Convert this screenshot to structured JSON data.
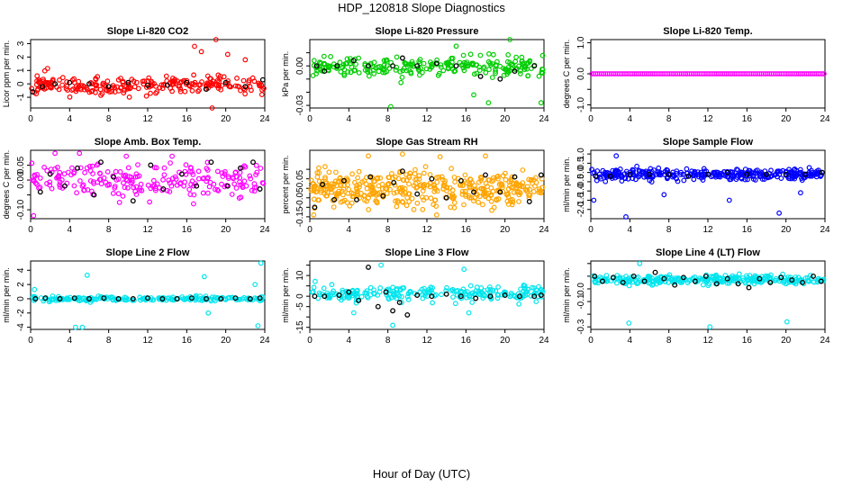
{
  "page": {
    "title": "HDP_120818  Slope Diagnostics",
    "xlabel": "Hour of Day (UTC)"
  },
  "chart_data": [
    {
      "type": "scatter",
      "title": "Slope Li-820 CO2",
      "ylabel": "Licor ppm per min.",
      "xlim": [
        0,
        24
      ],
      "ylim": [
        -1.8,
        3.3
      ],
      "xticks": [
        0,
        4,
        8,
        12,
        16,
        20,
        24
      ],
      "yticks": [
        -1,
        0,
        1,
        2,
        3
      ],
      "ytick_labels": [
        "-1",
        "0",
        "1",
        "2",
        "3"
      ],
      "color": "#ff0000",
      "center": -0.1,
      "spread": 0.7,
      "n": 240,
      "seed": 11,
      "outliers": [
        [
          16.8,
          2.8
        ],
        [
          19.0,
          3.3
        ],
        [
          17.5,
          2.4
        ],
        [
          18.6,
          -1.8
        ],
        [
          20.2,
          2.2
        ],
        [
          22.0,
          1.8
        ]
      ],
      "black": [
        [
          0.2,
          -0.6
        ],
        [
          1.2,
          -0.2
        ],
        [
          2.5,
          0.0
        ],
        [
          4.0,
          0.1
        ],
        [
          6.0,
          0.0
        ],
        [
          8.0,
          -0.2
        ],
        [
          10.0,
          0.1
        ],
        [
          12.0,
          -0.1
        ],
        [
          14.0,
          -0.1
        ],
        [
          16.0,
          0.1
        ],
        [
          18.0,
          -0.4
        ],
        [
          20.0,
          0.1
        ],
        [
          22.0,
          -0.2
        ],
        [
          23.8,
          0.3
        ]
      ]
    },
    {
      "type": "scatter",
      "title": "Slope Li-820 Pressure",
      "ylabel": "kPa per min.",
      "xlim": [
        0,
        24
      ],
      "ylim": [
        -0.032,
        0.02
      ],
      "xticks": [
        0,
        4,
        8,
        12,
        16,
        20,
        24
      ],
      "yticks": [
        -0.03,
        -0.02,
        -0.01,
        0.0,
        0.01
      ],
      "ytick_labels": [
        "-0.03",
        "",
        "",
        "0.00",
        ""
      ],
      "color": "#00cc00",
      "center": 0.0,
      "spread": 0.007,
      "n": 240,
      "seed": 23,
      "outliers": [
        [
          8.3,
          -0.031
        ],
        [
          15.0,
          0.015
        ],
        [
          16.8,
          -0.022
        ],
        [
          18.3,
          -0.028
        ],
        [
          20.5,
          0.02
        ],
        [
          23.7,
          -0.028
        ]
      ],
      "black": [
        [
          0.7,
          0.0
        ],
        [
          1.5,
          -0.004
        ],
        [
          2.8,
          0.0
        ],
        [
          4.5,
          0.004
        ],
        [
          6.0,
          0.0
        ],
        [
          8.5,
          0.0
        ],
        [
          9.5,
          0.006
        ],
        [
          11.0,
          0.0
        ],
        [
          13.0,
          0.002
        ],
        [
          15.0,
          0.0
        ],
        [
          17.5,
          -0.008
        ],
        [
          19.5,
          -0.01
        ],
        [
          21.0,
          -0.004
        ],
        [
          23.0,
          0.0
        ]
      ]
    },
    {
      "type": "scatter",
      "title": "Slope Li-820 Temp.",
      "ylabel": "degrees C per min.",
      "xlim": [
        0,
        24
      ],
      "ylim": [
        -1.1,
        1.1
      ],
      "xticks": [
        0,
        4,
        8,
        12,
        16,
        20,
        24
      ],
      "yticks": [
        -1.0,
        -0.5,
        0.0,
        0.5,
        1.0
      ],
      "ytick_labels": [
        "-1.0",
        "",
        "0.0",
        "",
        "1.0"
      ],
      "color": "#ff00ff",
      "center": 0.0,
      "spread": 0.0,
      "n": 120,
      "seed": 31,
      "outliers": [],
      "black": [],
      "regular": true
    },
    {
      "type": "scatter",
      "title": "Slope Amb. Box Temp.",
      "ylabel": "degrees C per min.",
      "xlim": [
        0,
        24
      ],
      "ylim": [
        -0.13,
        0.1
      ],
      "xticks": [
        0,
        4,
        8,
        12,
        16,
        20,
        24
      ],
      "yticks": [
        -0.1,
        -0.05,
        0.0,
        0.05
      ],
      "ytick_labels": [
        "-0.10",
        "",
        "0.00",
        "0.05"
      ],
      "color": "#ff00ff",
      "center": 0.0,
      "spread": 0.055,
      "n": 220,
      "seed": 47,
      "outliers": [
        [
          0.3,
          -0.12
        ],
        [
          2.5,
          0.09
        ],
        [
          5.0,
          0.09
        ],
        [
          9.8,
          0.08
        ],
        [
          14.5,
          0.08
        ],
        [
          16.7,
          -0.08
        ]
      ],
      "black": [
        [
          1.0,
          -0.04
        ],
        [
          2.0,
          0.02
        ],
        [
          3.5,
          -0.02
        ],
        [
          4.8,
          0.04
        ],
        [
          6.5,
          -0.05
        ],
        [
          7.2,
          0.06
        ],
        [
          8.5,
          0.01
        ],
        [
          10.5,
          -0.07
        ],
        [
          12.3,
          0.05
        ],
        [
          13.6,
          -0.03
        ],
        [
          15.5,
          0.02
        ],
        [
          17.0,
          -0.02
        ],
        [
          18.5,
          0.06
        ],
        [
          20.2,
          -0.02
        ],
        [
          21.5,
          0.04
        ],
        [
          22.8,
          0.06
        ],
        [
          23.5,
          -0.03
        ]
      ]
    },
    {
      "type": "scatter",
      "title": "Slope Gas Stream RH",
      "ylabel": "percent per min.",
      "xlim": [
        0,
        24
      ],
      "ylim": [
        -0.16,
        0.2
      ],
      "xticks": [
        0,
        4,
        8,
        12,
        16,
        20,
        24
      ],
      "yticks": [
        -0.15,
        -0.1,
        -0.05,
        0.0,
        0.05,
        0.1
      ],
      "ytick_labels": [
        "-0.15",
        "",
        "-0.05",
        "",
        "0.05",
        ""
      ],
      "color": "#ffa500",
      "center": 0.0,
      "spread": 0.09,
      "n": 420,
      "seed": 59,
      "outliers": [
        [
          0.4,
          -0.14
        ],
        [
          6.0,
          0.17
        ],
        [
          9.5,
          0.18
        ],
        [
          13.0,
          -0.14
        ],
        [
          18.0,
          0.17
        ]
      ],
      "black": [
        [
          0.5,
          -0.1
        ],
        [
          1.3,
          0.02
        ],
        [
          2.5,
          -0.06
        ],
        [
          3.5,
          0.04
        ],
        [
          4.8,
          -0.06
        ],
        [
          6.2,
          0.06
        ],
        [
          7.5,
          -0.04
        ],
        [
          8.6,
          0.03
        ],
        [
          9.5,
          0.09
        ],
        [
          11.0,
          -0.03
        ],
        [
          12.5,
          0.05
        ],
        [
          14.0,
          -0.05
        ],
        [
          15.5,
          0.04
        ],
        [
          16.8,
          -0.02
        ],
        [
          18.0,
          0.07
        ],
        [
          19.5,
          -0.02
        ],
        [
          21.0,
          0.06
        ],
        [
          22.5,
          -0.07
        ],
        [
          23.7,
          0.07
        ]
      ]
    },
    {
      "type": "scatter",
      "title": "Slope Sample Flow",
      "ylabel": "ml/min per min.",
      "xlim": [
        0,
        24
      ],
      "ylim": [
        -2.5,
        1.2
      ],
      "xticks": [
        0,
        4,
        8,
        12,
        16,
        20,
        24
      ],
      "yticks": [
        -2.0,
        -1.5,
        -1.0,
        -0.5,
        0.0,
        0.5,
        1.0
      ],
      "ytick_labels": [
        "-2.0",
        "-1.5",
        "-1.0",
        "-0.5",
        "0.0",
        "0.5",
        "1.0"
      ],
      "color": "#0000ff",
      "center": -0.1,
      "spread": 0.3,
      "n": 340,
      "seed": 71,
      "outliers": [
        [
          2.6,
          0.9
        ],
        [
          3.6,
          -2.4
        ],
        [
          7.5,
          -1.2
        ],
        [
          14.2,
          -1.5
        ],
        [
          19.3,
          -2.2
        ],
        [
          21.5,
          -1.1
        ],
        [
          0.3,
          -1.5
        ]
      ],
      "black": [
        [
          0.5,
          -0.2
        ],
        [
          2.0,
          -0.2
        ],
        [
          4.0,
          -0.1
        ],
        [
          6.0,
          -0.1
        ],
        [
          8.0,
          -0.1
        ],
        [
          10.0,
          -0.2
        ],
        [
          12.0,
          -0.1
        ],
        [
          14.0,
          0.0
        ],
        [
          16.0,
          -0.1
        ],
        [
          18.0,
          -0.1
        ],
        [
          20.0,
          -0.1
        ],
        [
          22.0,
          -0.1
        ],
        [
          23.7,
          0.0
        ]
      ]
    },
    {
      "type": "scatter",
      "title": "Slope Line 2 Flow",
      "ylabel": "ml/min per min.",
      "xlim": [
        0,
        24
      ],
      "ylim": [
        -4.3,
        5.3
      ],
      "xticks": [
        0,
        4,
        8,
        12,
        16,
        20,
        24
      ],
      "yticks": [
        -4,
        -2,
        0,
        2,
        4
      ],
      "ytick_labels": [
        "-4",
        "-2",
        "0",
        "2",
        "4"
      ],
      "color": "#00e5ee",
      "center": 0.0,
      "spread": 0.3,
      "n": 200,
      "seed": 83,
      "outliers": [
        [
          0.4,
          1.3
        ],
        [
          4.6,
          -4.0
        ],
        [
          5.3,
          -4.0
        ],
        [
          5.8,
          3.3
        ],
        [
          17.8,
          3.1
        ],
        [
          18.2,
          -2.0
        ],
        [
          23.6,
          5.0
        ],
        [
          23.3,
          -3.8
        ],
        [
          23.0,
          2.0
        ]
      ],
      "black": [
        [
          0.5,
          0.0
        ],
        [
          1.5,
          0.1
        ],
        [
          3.0,
          0.0
        ],
        [
          4.5,
          0.1
        ],
        [
          6.0,
          0.0
        ],
        [
          7.5,
          0.1
        ],
        [
          9.0,
          0.0
        ],
        [
          10.5,
          0.0
        ],
        [
          12.0,
          0.1
        ],
        [
          13.5,
          0.0
        ],
        [
          15.0,
          0.0
        ],
        [
          16.5,
          0.1
        ],
        [
          18.0,
          0.0
        ],
        [
          19.5,
          0.0
        ],
        [
          21.0,
          0.1
        ],
        [
          22.5,
          0.0
        ],
        [
          23.5,
          0.1
        ]
      ]
    },
    {
      "type": "scatter",
      "title": "Slope Line 3 Flow",
      "ylabel": "ml/min per min.",
      "xlim": [
        0,
        24
      ],
      "ylim": [
        -16,
        17
      ],
      "xticks": [
        0,
        4,
        8,
        12,
        16,
        20,
        24
      ],
      "yticks": [
        -15,
        -10,
        -5,
        0,
        5,
        10,
        15
      ],
      "ytick_labels": [
        "-15",
        "",
        "-5",
        "0",
        "",
        "10",
        ""
      ],
      "color": "#00e5ee",
      "center": 1.0,
      "spread": 4.0,
      "n": 230,
      "seed": 97,
      "outliers": [
        [
          7.3,
          15
        ],
        [
          15.8,
          13
        ],
        [
          16.3,
          -8
        ],
        [
          8.5,
          -14
        ],
        [
          4.5,
          -8
        ]
      ],
      "black": [
        [
          0.5,
          0.0
        ],
        [
          1.5,
          0.0
        ],
        [
          3.0,
          0.5
        ],
        [
          4.0,
          2.0
        ],
        [
          5.0,
          -2.0
        ],
        [
          6.0,
          14
        ],
        [
          7.0,
          -5.0
        ],
        [
          7.8,
          2.0
        ],
        [
          8.5,
          -7.0
        ],
        [
          9.2,
          -3.0
        ],
        [
          10.0,
          -9.0
        ],
        [
          11.0,
          0.5
        ],
        [
          12.5,
          0.0
        ],
        [
          14.0,
          1.0
        ],
        [
          15.5,
          0.0
        ],
        [
          17.0,
          -1.0
        ],
        [
          18.5,
          0.0
        ],
        [
          20.0,
          0.5
        ],
        [
          21.5,
          0.0
        ],
        [
          23.0,
          0.0
        ],
        [
          23.7,
          0.5
        ]
      ]
    },
    {
      "type": "scatter",
      "title": "Slope Line 4 (LT) Flow",
      "ylabel": "ml/min per min.",
      "xlim": [
        0,
        24
      ],
      "ylim": [
        -0.32,
        0.22
      ],
      "xticks": [
        0,
        4,
        8,
        12,
        16,
        20,
        24
      ],
      "yticks": [
        -0.3,
        -0.2,
        -0.1,
        0.0,
        0.1,
        0.2
      ],
      "ytick_labels": [
        "-0.3",
        "",
        "-0.1",
        "0.0",
        "",
        ""
      ],
      "color": "#00e5ee",
      "center": 0.07,
      "spread": 0.035,
      "n": 300,
      "seed": 109,
      "outliers": [
        [
          3.9,
          -0.27
        ],
        [
          12.2,
          -0.3
        ],
        [
          20.1,
          -0.26
        ],
        [
          5.0,
          0.2
        ]
      ],
      "black": [
        [
          0.4,
          0.1
        ],
        [
          1.2,
          0.06
        ],
        [
          2.3,
          0.09
        ],
        [
          3.3,
          0.05
        ],
        [
          4.4,
          0.1
        ],
        [
          5.5,
          0.06
        ],
        [
          6.6,
          0.13
        ],
        [
          7.5,
          0.08
        ],
        [
          8.6,
          0.03
        ],
        [
          9.5,
          0.09
        ],
        [
          10.7,
          0.06
        ],
        [
          11.8,
          0.1
        ],
        [
          12.9,
          0.04
        ],
        [
          14.0,
          0.08
        ],
        [
          15.1,
          0.04
        ],
        [
          16.2,
          0.01
        ],
        [
          17.3,
          0.08
        ],
        [
          18.4,
          0.05
        ],
        [
          19.5,
          0.09
        ],
        [
          20.6,
          0.07
        ],
        [
          21.7,
          0.05
        ],
        [
          22.8,
          0.1
        ],
        [
          23.6,
          0.06
        ]
      ]
    }
  ]
}
